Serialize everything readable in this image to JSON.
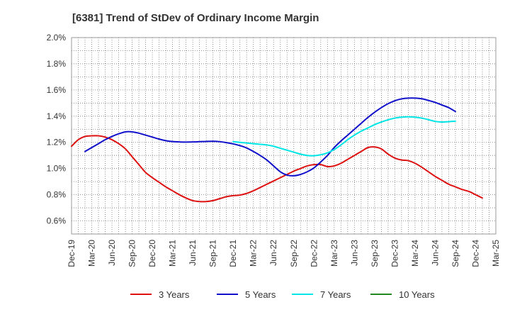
{
  "chart_data": {
    "type": "line",
    "title": "[6381]  Trend of StDev of Ordinary Income Margin",
    "xlabel": "",
    "ylabel": "",
    "ylim": [
      0.5,
      2.0
    ],
    "yticks": [
      "0.6%",
      "0.8%",
      "1.0%",
      "1.2%",
      "1.4%",
      "1.6%",
      "1.8%",
      "2.0%"
    ],
    "x_tick_labels": [
      "Dec-19",
      "Mar-20",
      "Jun-20",
      "Sep-20",
      "Dec-20",
      "Mar-21",
      "Jun-21",
      "Sep-21",
      "Dec-21",
      "Mar-22",
      "Jun-22",
      "Sep-22",
      "Dec-22",
      "Mar-23",
      "Jun-23",
      "Sep-23",
      "Dec-23",
      "Mar-24",
      "Jun-24",
      "Sep-24",
      "Dec-24",
      "Mar-25"
    ],
    "grid": true,
    "legend_position": "bottom",
    "series": [
      {
        "name": "3 Years",
        "color": "#dd1111",
        "start_index": 0,
        "values": [
          1.17,
          1.22,
          1.245,
          1.25,
          1.25,
          1.24,
          1.22,
          1.19,
          1.15,
          1.09,
          1.03,
          0.97,
          0.93,
          0.895,
          0.86,
          0.83,
          0.8,
          0.775,
          0.755,
          0.748,
          0.748,
          0.755,
          0.77,
          0.785,
          0.793,
          0.797,
          0.81,
          0.83,
          0.855,
          0.88,
          0.905,
          0.93,
          0.955,
          0.98,
          1.0,
          1.02,
          1.03,
          1.03,
          1.015,
          1.02,
          1.04,
          1.07,
          1.1,
          1.13,
          1.16,
          1.165,
          1.15,
          1.11,
          1.08,
          1.065,
          1.06,
          1.04,
          1.01,
          0.975,
          0.94,
          0.91,
          0.88,
          0.86,
          0.84,
          0.825,
          0.8,
          0.775
        ]
      },
      {
        "name": "5 Years",
        "color": "#1111cc",
        "start_index": 2,
        "values": [
          1.13,
          1.16,
          1.19,
          1.22,
          1.245,
          1.265,
          1.28,
          1.28,
          1.27,
          1.255,
          1.24,
          1.225,
          1.213,
          1.206,
          1.203,
          1.202,
          1.203,
          1.205,
          1.207,
          1.208,
          1.205,
          1.198,
          1.188,
          1.175,
          1.157,
          1.13,
          1.1,
          1.065,
          1.02,
          0.975,
          0.95,
          0.945,
          0.955,
          0.975,
          1.005,
          1.05,
          1.1,
          1.16,
          1.21,
          1.255,
          1.3,
          1.345,
          1.39,
          1.43,
          1.465,
          1.495,
          1.518,
          1.532,
          1.538,
          1.538,
          1.533,
          1.52,
          1.505,
          1.485,
          1.465,
          1.435
        ]
      },
      {
        "name": "7 Years",
        "color": "#00e5e5",
        "start_index": 24,
        "values": [
          1.205,
          1.2,
          1.195,
          1.19,
          1.185,
          1.18,
          1.17,
          1.155,
          1.14,
          1.125,
          1.11,
          1.1,
          1.098,
          1.105,
          1.12,
          1.145,
          1.18,
          1.22,
          1.255,
          1.285,
          1.31,
          1.335,
          1.355,
          1.372,
          1.385,
          1.392,
          1.395,
          1.392,
          1.385,
          1.373,
          1.36,
          1.355,
          1.358,
          1.362
        ]
      },
      {
        "name": "10 Years",
        "color": "#228822",
        "start_index": 0,
        "values": []
      }
    ]
  }
}
